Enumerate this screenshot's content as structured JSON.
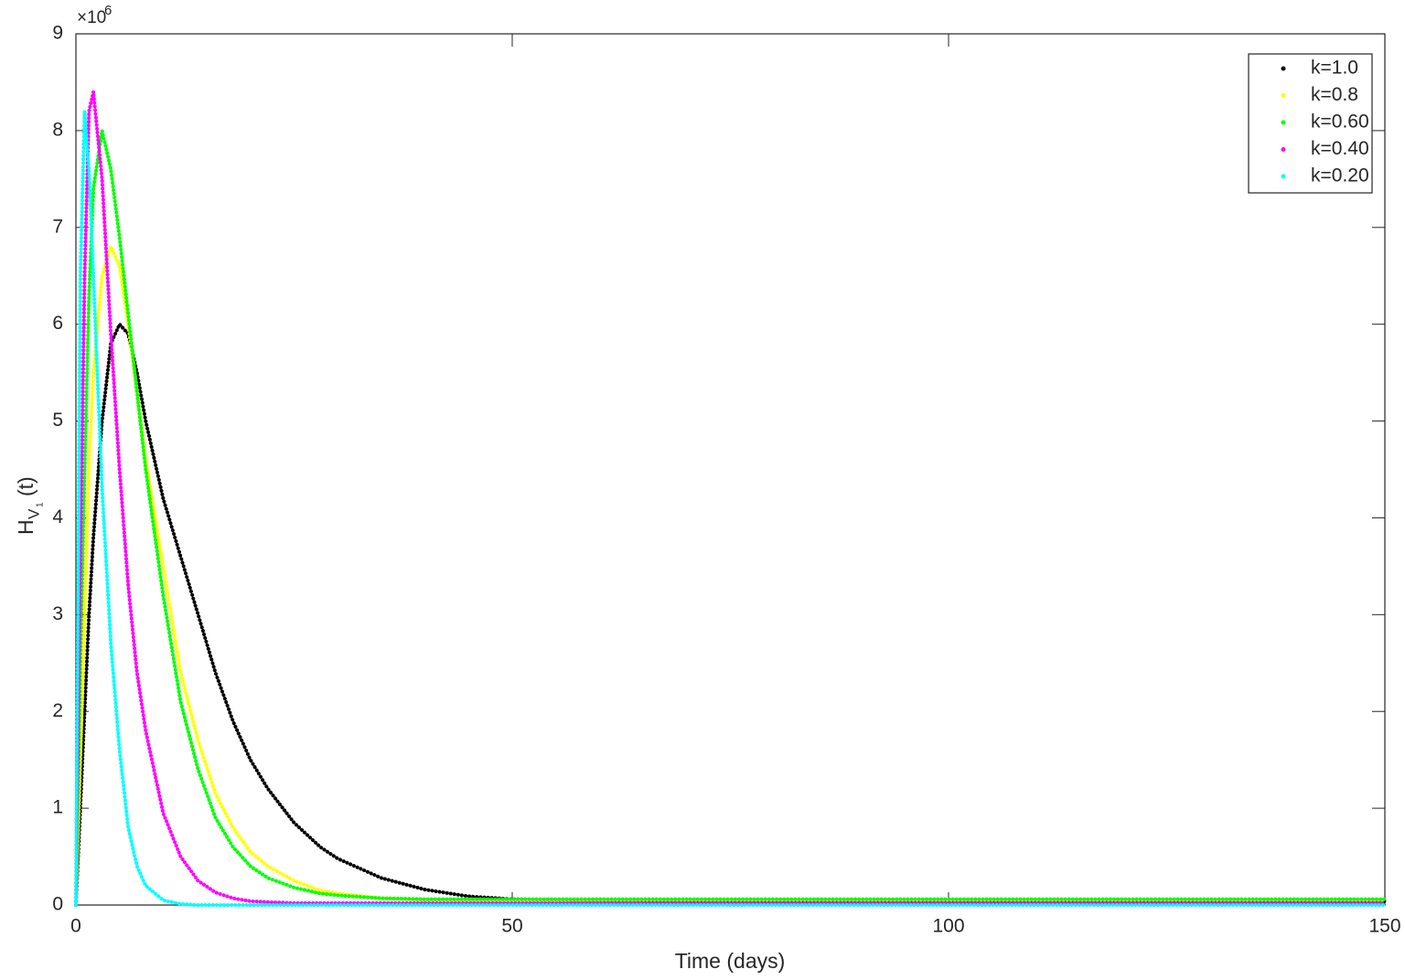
{
  "chart_data": {
    "type": "line",
    "xlabel": "Time (days)",
    "ylabel": "H",
    "ylabel_sub": "V",
    "ylabel_subsub": "1",
    "ylabel_suffix": "(t)",
    "y_scale_base": "×10",
    "y_scale_exponent": "6",
    "xlim": [
      0,
      150
    ],
    "xticks": [
      0,
      50,
      100,
      150
    ],
    "ylim": [
      0,
      9
    ],
    "yticks": [
      0,
      1,
      2,
      3,
      4,
      5,
      6,
      7,
      8,
      9
    ],
    "grid": false,
    "legend": "upper right",
    "x": [
      0,
      0.5,
      1,
      1.5,
      2,
      3,
      4,
      5,
      6,
      7,
      8,
      10,
      12,
      14,
      16,
      18,
      20,
      22,
      25,
      28,
      30,
      35,
      40,
      45,
      50,
      60,
      80,
      100,
      125,
      150
    ],
    "series": [
      {
        "name": "k=1.0",
        "color": "#000000",
        "values": [
          0,
          1.0,
          2.0,
          3.0,
          3.8,
          5.0,
          5.8,
          6.0,
          5.9,
          5.5,
          5.0,
          4.2,
          3.6,
          3.0,
          2.4,
          1.9,
          1.5,
          1.2,
          0.85,
          0.6,
          0.48,
          0.28,
          0.16,
          0.09,
          0.06,
          0.05,
          0.04,
          0.04,
          0.04,
          0.04
        ]
      },
      {
        "name": "k=0.8",
        "color": "#ffff00",
        "values": [
          0,
          1.5,
          3.0,
          4.5,
          5.5,
          6.5,
          6.8,
          6.6,
          6.0,
          5.3,
          4.6,
          3.5,
          2.4,
          1.7,
          1.15,
          0.8,
          0.55,
          0.4,
          0.25,
          0.15,
          0.12,
          0.07,
          0.05,
          0.05,
          0.05,
          0.05,
          0.05,
          0.05,
          0.05,
          0.05
        ]
      },
      {
        "name": "k=0.60",
        "color": "#00ff00",
        "values": [
          0,
          2.5,
          4.5,
          6.3,
          7.4,
          8.0,
          7.6,
          6.9,
          6.1,
          5.3,
          4.5,
          3.2,
          2.1,
          1.4,
          0.9,
          0.6,
          0.4,
          0.28,
          0.18,
          0.12,
          0.1,
          0.07,
          0.06,
          0.06,
          0.06,
          0.06,
          0.06,
          0.06,
          0.06,
          0.06
        ]
      },
      {
        "name": "k=0.40",
        "color": "#ff00ff",
        "values": [
          0,
          3.5,
          6.5,
          8.2,
          8.4,
          7.5,
          5.9,
          4.5,
          3.3,
          2.4,
          1.8,
          0.95,
          0.5,
          0.25,
          0.13,
          0.07,
          0.04,
          0.03,
          0.02,
          0.02,
          0.02,
          0.02,
          0.02,
          0.02,
          0.02,
          0.02,
          0.02,
          0.02,
          0.02,
          0.02
        ]
      },
      {
        "name": "k=0.20",
        "color": "#00ffff",
        "values": [
          0,
          6.5,
          8.2,
          7.6,
          6.5,
          4.3,
          2.7,
          1.6,
          0.8,
          0.4,
          0.2,
          0.05,
          0.01,
          0,
          0,
          0,
          0,
          0,
          0,
          0,
          0,
          0,
          0,
          0,
          0,
          0,
          0,
          0,
          0,
          0
        ]
      }
    ]
  }
}
